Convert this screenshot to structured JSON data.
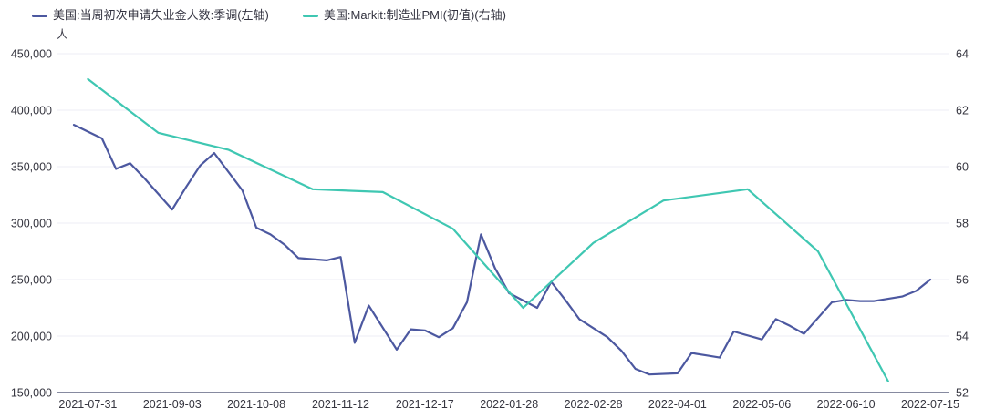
{
  "unit_label": "人",
  "colors": {
    "claims_line": "#4C58A0",
    "pmi_line": "#3FC7B2",
    "gridline": "#EDEDF4",
    "axis_line": "#3E4568",
    "tick_text": "#35353f"
  },
  "chart_data": {
    "type": "line",
    "grid": "horizontal",
    "legend_position": "top-left",
    "left_ylim": [
      150000,
      450000
    ],
    "left_step": 50000,
    "right_ylim": [
      52,
      64
    ],
    "right_step": 2,
    "left_tick_labels": [
      "450,000",
      "400,000",
      "350,000",
      "300,000",
      "250,000",
      "200,000",
      "150,000"
    ],
    "right_tick_labels": [
      "64",
      "62",
      "60",
      "58",
      "56",
      "54",
      "52"
    ],
    "x_labels": [
      "2021-07-31",
      "2021-09-03",
      "2021-10-08",
      "2021-11-12",
      "2021-12-17",
      "2022-01-28",
      "2022-02-28",
      "2022-04-01",
      "2022-05-06",
      "2022-06-10",
      "2022-07-15"
    ],
    "series": [
      {
        "name": "美国:当周初次申请失业金人数:季调(左轴)",
        "axis": "left",
        "color": "#4C58A0",
        "dates": [
          "2021-07-30",
          "2021-08-06",
          "2021-08-13",
          "2021-08-20",
          "2021-08-27",
          "2021-09-03",
          "2021-09-10",
          "2021-09-17",
          "2021-09-24",
          "2021-10-01",
          "2021-10-08",
          "2021-10-15",
          "2021-10-22",
          "2021-10-29",
          "2021-11-05",
          "2021-11-12",
          "2021-11-19",
          "2021-11-26",
          "2021-12-03",
          "2021-12-10",
          "2021-12-17",
          "2021-12-24",
          "2021-12-31",
          "2022-01-07",
          "2022-01-14",
          "2022-01-21",
          "2022-01-28",
          "2022-02-04",
          "2022-02-11",
          "2022-02-18",
          "2022-02-25",
          "2022-03-04",
          "2022-03-11",
          "2022-03-18",
          "2022-03-25",
          "2022-04-01",
          "2022-04-08",
          "2022-04-15",
          "2022-04-22",
          "2022-04-29",
          "2022-05-06",
          "2022-05-13",
          "2022-05-20",
          "2022-05-27",
          "2022-06-03",
          "2022-06-10",
          "2022-06-17",
          "2022-06-24",
          "2022-07-01",
          "2022-07-08",
          "2022-07-15"
        ],
        "values": [
          387000,
          375000,
          348000,
          353000,
          340000,
          312000,
          332000,
          351000,
          362000,
          329000,
          296000,
          290000,
          281000,
          269000,
          267000,
          270000,
          194000,
          227000,
          188000,
          206000,
          205000,
          199000,
          207000,
          230000,
          290000,
          260000,
          238000,
          225000,
          248000,
          232000,
          215000,
          199000,
          187000,
          171000,
          166000,
          167000,
          185000,
          183000,
          181000,
          204000,
          197000,
          215000,
          209000,
          202000,
          230000,
          232000,
          231000,
          231000,
          235000,
          240000,
          250000
        ]
      },
      {
        "name": "美国:Markit:制造业PMI(初值)(右轴)",
        "axis": "right",
        "color": "#3FC7B2",
        "dates": [
          "2021-07-31",
          "2021-08-31",
          "2021-09-30",
          "2021-10-31",
          "2021-11-30",
          "2021-12-31",
          "2022-01-31",
          "2022-02-28",
          "2022-03-31",
          "2022-04-30",
          "2022-05-31",
          "2022-06-30"
        ],
        "values": [
          63.1,
          61.2,
          60.6,
          59.2,
          59.1,
          57.8,
          55.0,
          57.3,
          58.8,
          59.2,
          57.0,
          52.4
        ]
      }
    ]
  }
}
